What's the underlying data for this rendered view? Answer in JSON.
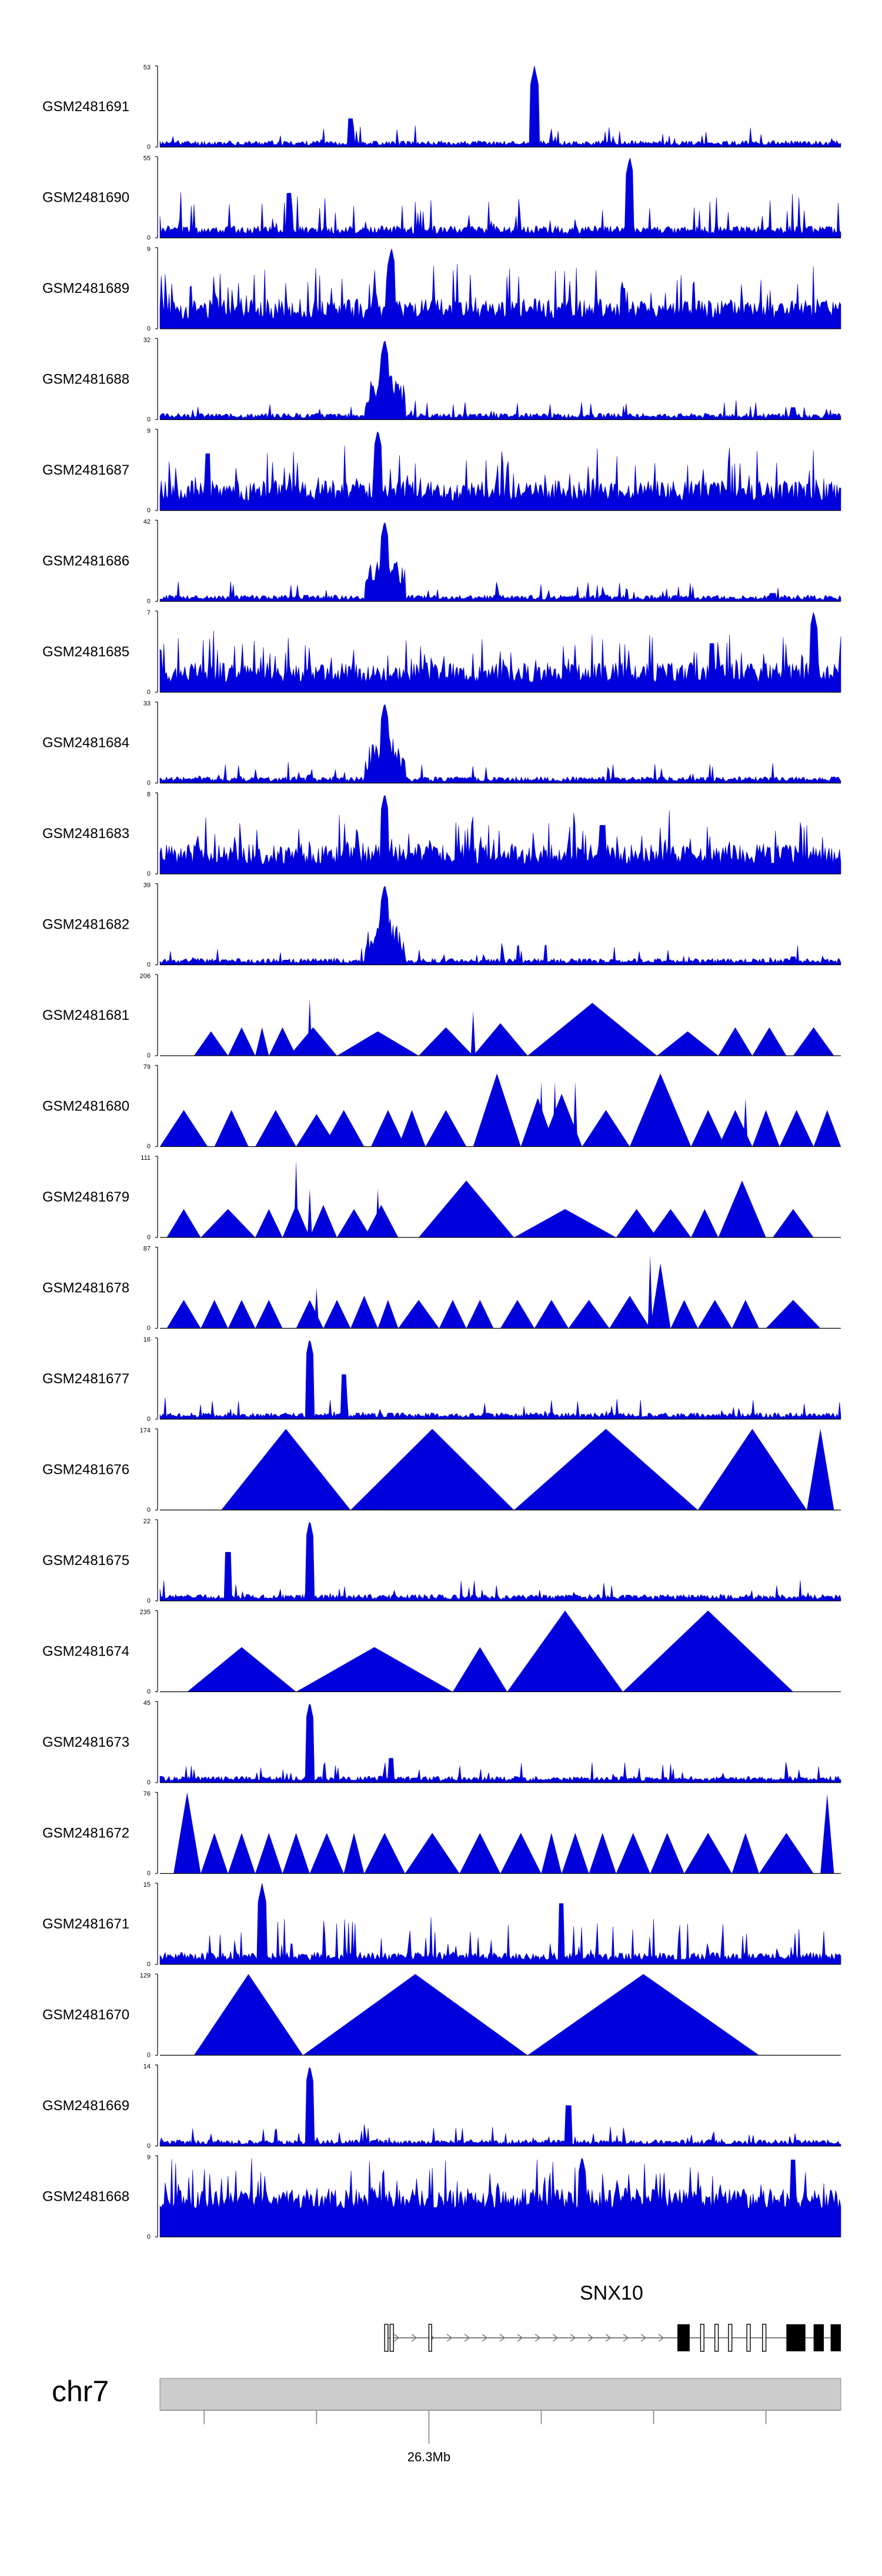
{
  "chart_data": {
    "type": "area",
    "title": "",
    "series_color": "#0000dd",
    "tracks": [
      {
        "name": "GSM2481691",
        "ymin": "0",
        "ymax": "53",
        "style": "chip-sparse",
        "seed": 11,
        "peak": 0.55,
        "peak2": [
          0.28,
          0.35
        ]
      },
      {
        "name": "GSM2481690",
        "ymin": "0",
        "ymax": "55",
        "style": "spiky",
        "seed": 12,
        "peak": 0.69,
        "peak2": [
          0.19,
          0.55
        ]
      },
      {
        "name": "GSM2481689",
        "ymin": "0",
        "ymax": "9",
        "style": "noisy",
        "seed": 13,
        "peak": 0.34,
        "peak2": [
          0.68,
          0.5
        ]
      },
      {
        "name": "GSM2481688",
        "ymin": "0",
        "ymax": "32",
        "style": "chip-peak",
        "seed": 14,
        "peak": 0.33,
        "peak2": [
          0.93,
          0.15
        ]
      },
      {
        "name": "GSM2481687",
        "ymin": "0",
        "ymax": "9",
        "style": "noisy",
        "seed": 15,
        "peak": 0.32,
        "peak2": [
          0.07,
          0.7
        ]
      },
      {
        "name": "GSM2481686",
        "ymin": "0",
        "ymax": "42",
        "style": "chip-peak",
        "seed": 16,
        "peak": 0.33,
        "peak2": [
          0.9,
          0.1
        ]
      },
      {
        "name": "GSM2481685",
        "ymin": "0",
        "ymax": "7",
        "style": "noisy",
        "seed": 17,
        "peak": 0.96,
        "peak2": [
          0.81,
          0.6
        ]
      },
      {
        "name": "GSM2481684",
        "ymin": "0",
        "ymax": "33",
        "style": "chip-peak",
        "seed": 18,
        "peak": 0.33,
        "peak2": [
          0.22,
          0.1
        ]
      },
      {
        "name": "GSM2481683",
        "ymin": "0",
        "ymax": "8",
        "style": "noisy",
        "seed": 19,
        "peak": 0.33,
        "peak2": [
          0.65,
          0.6
        ]
      },
      {
        "name": "GSM2481682",
        "ymin": "0",
        "ymax": "39",
        "style": "chip-peak",
        "seed": 20,
        "peak": 0.33,
        "peak2": [
          0.93,
          0.1
        ]
      },
      {
        "name": "GSM2481681",
        "ymin": "0",
        "ymax": "206",
        "style": "triangles",
        "seed": 21,
        "tri": [
          [
            0.05,
            0.1,
            0.3
          ],
          [
            0.1,
            0.14,
            0.35
          ],
          [
            0.14,
            0.16,
            0.35
          ],
          [
            0.16,
            0.2,
            0.35
          ],
          [
            0.19,
            0.26,
            0.35
          ],
          [
            0.26,
            0.38,
            0.3
          ],
          [
            0.38,
            0.46,
            0.35
          ],
          [
            0.46,
            0.54,
            0.4
          ],
          [
            0.54,
            0.73,
            0.65
          ],
          [
            0.73,
            0.82,
            0.3
          ],
          [
            0.82,
            0.87,
            0.35
          ],
          [
            0.87,
            0.92,
            0.35
          ],
          [
            0.93,
            0.99,
            0.35
          ]
        ],
        "spikes": [
          [
            0.22,
            0.7
          ],
          [
            0.46,
            0.55
          ]
        ]
      },
      {
        "name": "GSM2481680",
        "ymin": "0",
        "ymax": "79",
        "style": "triangles",
        "seed": 22,
        "tri": [
          [
            0.0,
            0.07,
            0.45
          ],
          [
            0.08,
            0.13,
            0.45
          ],
          [
            0.14,
            0.2,
            0.45
          ],
          [
            0.2,
            0.26,
            0.4
          ],
          [
            0.24,
            0.3,
            0.45
          ],
          [
            0.31,
            0.36,
            0.45
          ],
          [
            0.35,
            0.39,
            0.45
          ],
          [
            0.39,
            0.45,
            0.45
          ],
          [
            0.46,
            0.53,
            0.9
          ],
          [
            0.53,
            0.58,
            0.6
          ],
          [
            0.56,
            0.62,
            0.65
          ],
          [
            0.62,
            0.69,
            0.45
          ],
          [
            0.69,
            0.78,
            0.9
          ],
          [
            0.78,
            0.83,
            0.45
          ],
          [
            0.82,
            0.87,
            0.45
          ],
          [
            0.87,
            0.91,
            0.45
          ],
          [
            0.91,
            0.96,
            0.45
          ],
          [
            0.96,
            1.0,
            0.45
          ]
        ],
        "spikes": [
          [
            0.56,
            0.8
          ],
          [
            0.58,
            0.8
          ],
          [
            0.61,
            0.8
          ],
          [
            0.86,
            0.6
          ]
        ]
      },
      {
        "name": "GSM2481679",
        "ymin": "0",
        "ymax": "111",
        "style": "triangles",
        "seed": 23,
        "tri": [
          [
            0.01,
            0.06,
            0.35
          ],
          [
            0.06,
            0.14,
            0.35
          ],
          [
            0.14,
            0.18,
            0.35
          ],
          [
            0.18,
            0.22,
            0.4
          ],
          [
            0.22,
            0.26,
            0.4
          ],
          [
            0.26,
            0.31,
            0.35
          ],
          [
            0.3,
            0.35,
            0.4
          ],
          [
            0.38,
            0.52,
            0.7
          ],
          [
            0.52,
            0.67,
            0.35
          ],
          [
            0.67,
            0.73,
            0.35
          ],
          [
            0.72,
            0.78,
            0.35
          ],
          [
            0.78,
            0.82,
            0.35
          ],
          [
            0.82,
            0.89,
            0.7
          ],
          [
            0.9,
            0.96,
            0.35
          ]
        ],
        "spikes": [
          [
            0.2,
            0.95
          ],
          [
            0.22,
            0.6
          ],
          [
            0.32,
            0.6
          ]
        ]
      },
      {
        "name": "GSM2481678",
        "ymin": "0",
        "ymax": "87",
        "style": "triangles",
        "seed": 24,
        "tri": [
          [
            0.01,
            0.06,
            0.35
          ],
          [
            0.06,
            0.1,
            0.35
          ],
          [
            0.1,
            0.14,
            0.35
          ],
          [
            0.14,
            0.18,
            0.35
          ],
          [
            0.2,
            0.24,
            0.35
          ],
          [
            0.24,
            0.28,
            0.35
          ],
          [
            0.28,
            0.32,
            0.4
          ],
          [
            0.32,
            0.35,
            0.35
          ],
          [
            0.35,
            0.41,
            0.35
          ],
          [
            0.41,
            0.45,
            0.35
          ],
          [
            0.45,
            0.49,
            0.35
          ],
          [
            0.5,
            0.55,
            0.35
          ],
          [
            0.55,
            0.6,
            0.35
          ],
          [
            0.6,
            0.66,
            0.35
          ],
          [
            0.66,
            0.72,
            0.4
          ],
          [
            0.72,
            0.75,
            0.8
          ],
          [
            0.75,
            0.79,
            0.35
          ],
          [
            0.79,
            0.84,
            0.35
          ],
          [
            0.84,
            0.88,
            0.35
          ],
          [
            0.89,
            0.97,
            0.35
          ]
        ],
        "spikes": [
          [
            0.23,
            0.5
          ],
          [
            0.72,
            0.9
          ]
        ]
      },
      {
        "name": "GSM2481677",
        "ymin": "0",
        "ymax": "16",
        "style": "chip-sparse",
        "seed": 25,
        "peak": 0.22,
        "peak2": [
          0.27,
          0.55
        ]
      },
      {
        "name": "GSM2481676",
        "ymin": "0",
        "ymax": "174",
        "style": "triangles",
        "seed": 26,
        "tri": [
          [
            0.09,
            0.28,
            1.0
          ],
          [
            0.28,
            0.52,
            1.0
          ],
          [
            0.52,
            0.79,
            1.0
          ],
          [
            0.79,
            0.95,
            1.0
          ],
          [
            0.95,
            0.99,
            1.0
          ]
        ],
        "spikes": []
      },
      {
        "name": "GSM2481675",
        "ymin": "0",
        "ymax": "22",
        "style": "chip-sparse",
        "seed": 27,
        "peak": 0.22,
        "peak2": [
          0.1,
          0.6
        ]
      },
      {
        "name": "GSM2481674",
        "ymin": "0",
        "ymax": "235",
        "style": "triangles",
        "seed": 28,
        "tri": [
          [
            0.04,
            0.2,
            0.55
          ],
          [
            0.2,
            0.43,
            0.55
          ],
          [
            0.43,
            0.51,
            0.55
          ],
          [
            0.51,
            0.68,
            1.0
          ],
          [
            0.68,
            0.93,
            1.0
          ]
        ],
        "spikes": []
      },
      {
        "name": "GSM2481673",
        "ymin": "0",
        "ymax": "45",
        "style": "chip-sparse",
        "seed": 29,
        "peak": 0.22,
        "peak2": [
          0.34,
          0.3
        ]
      },
      {
        "name": "GSM2481672",
        "ymin": "0",
        "ymax": "76",
        "style": "triangles",
        "seed": 30,
        "tri": [
          [
            0.02,
            0.06,
            1.0
          ],
          [
            0.06,
            0.1,
            0.5
          ],
          [
            0.1,
            0.14,
            0.5
          ],
          [
            0.14,
            0.18,
            0.5
          ],
          [
            0.18,
            0.22,
            0.5
          ],
          [
            0.22,
            0.27,
            0.5
          ],
          [
            0.27,
            0.3,
            0.5
          ],
          [
            0.3,
            0.36,
            0.5
          ],
          [
            0.36,
            0.44,
            0.5
          ],
          [
            0.44,
            0.5,
            0.5
          ],
          [
            0.5,
            0.56,
            0.5
          ],
          [
            0.56,
            0.59,
            0.5
          ],
          [
            0.59,
            0.63,
            0.5
          ],
          [
            0.63,
            0.67,
            0.5
          ],
          [
            0.67,
            0.72,
            0.5
          ],
          [
            0.72,
            0.77,
            0.5
          ],
          [
            0.77,
            0.84,
            0.5
          ],
          [
            0.84,
            0.88,
            0.5
          ],
          [
            0.88,
            0.96,
            0.5
          ],
          [
            0.97,
            0.99,
            0.98
          ]
        ],
        "spikes": []
      },
      {
        "name": "GSM2481671",
        "ymin": "0",
        "ymax": "15",
        "style": "spiky",
        "seed": 31,
        "peak": 0.15,
        "peak2": [
          0.59,
          0.75
        ]
      },
      {
        "name": "GSM2481670",
        "ymin": "0",
        "ymax": "129",
        "style": "triangles",
        "seed": 32,
        "tri": [
          [
            0.05,
            0.21,
            1.0
          ],
          [
            0.21,
            0.54,
            1.0
          ],
          [
            0.54,
            0.88,
            1.0
          ]
        ],
        "spikes": []
      },
      {
        "name": "GSM2481669",
        "ymin": "0",
        "ymax": "14",
        "style": "chip-sparse",
        "seed": 33,
        "peak": 0.22,
        "peak2": [
          0.6,
          0.5
        ]
      },
      {
        "name": "GSM2481668",
        "ymin": "0",
        "ymax": "9",
        "style": "noisy-dense",
        "seed": 34,
        "peak": 0.62,
        "peak2": [
          0.93,
          0.95
        ]
      }
    ],
    "gene": {
      "name": "SNX10",
      "strand": "+",
      "exons": [
        [
          0.33,
          0.335,
          "s"
        ],
        [
          0.338,
          0.343,
          "s"
        ],
        [
          0.395,
          0.399,
          "s"
        ],
        [
          0.76,
          0.778,
          "b"
        ],
        [
          0.794,
          0.799,
          "s"
        ],
        [
          0.815,
          0.82,
          "s"
        ],
        [
          0.835,
          0.84,
          "s"
        ],
        [
          0.862,
          0.867,
          "s"
        ],
        [
          0.885,
          0.89,
          "s"
        ],
        [
          0.92,
          0.948,
          "b"
        ],
        [
          0.96,
          0.975,
          "b"
        ],
        [
          0.985,
          1.0,
          "b"
        ]
      ],
      "span": [
        0.33,
        1.0
      ]
    },
    "ideogram": {
      "chromosome": "chr7",
      "tick_label": "26.3Mb",
      "ticks": [
        0.065,
        0.23,
        0.395,
        0.56,
        0.725,
        0.89
      ],
      "labeled_tick": 0.395
    }
  }
}
